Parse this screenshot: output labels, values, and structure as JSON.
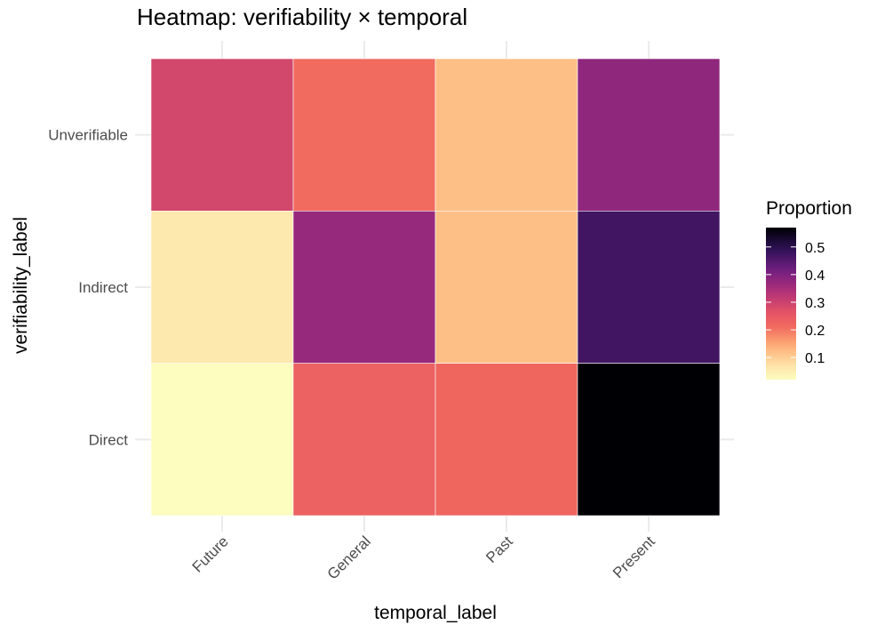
{
  "chart_data": {
    "type": "heatmap",
    "title": "Heatmap: verifiability × temporal",
    "xlabel": "temporal_label",
    "ylabel": "verifiability_label",
    "x_categories": [
      "Future",
      "General",
      "Past",
      "Present"
    ],
    "y_categories": [
      "Direct",
      "Indirect",
      "Unverifiable"
    ],
    "cells": [
      {
        "x": "Future",
        "y": "Unverifiable",
        "value": 0.29
      },
      {
        "x": "General",
        "y": "Unverifiable",
        "value": 0.21
      },
      {
        "x": "Past",
        "y": "Unverifiable",
        "value": 0.12
      },
      {
        "x": "Present",
        "y": "Unverifiable",
        "value": 0.38
      },
      {
        "x": "Future",
        "y": "Indirect",
        "value": 0.06
      },
      {
        "x": "General",
        "y": "Indirect",
        "value": 0.37
      },
      {
        "x": "Past",
        "y": "Indirect",
        "value": 0.12
      },
      {
        "x": "Present",
        "y": "Indirect",
        "value": 0.47
      },
      {
        "x": "Future",
        "y": "Direct",
        "value": 0.02
      },
      {
        "x": "General",
        "y": "Direct",
        "value": 0.23
      },
      {
        "x": "Past",
        "y": "Direct",
        "value": 0.22
      },
      {
        "x": "Present",
        "y": "Direct",
        "value": 0.57
      }
    ],
    "legend": {
      "title": "Proportion",
      "placement": "right",
      "ticks": [
        0.1,
        0.2,
        0.3,
        0.4,
        0.5
      ],
      "min": 0.02,
      "max": 0.57,
      "palette": "magma-reversed"
    },
    "grid": true
  }
}
